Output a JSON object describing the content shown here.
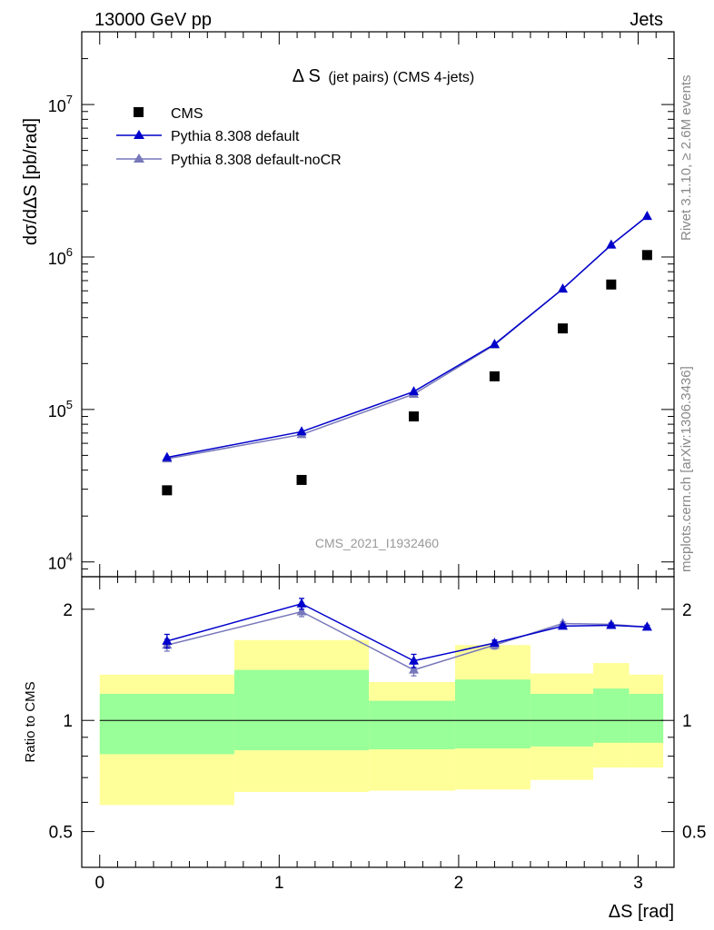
{
  "header": {
    "left": "13000 GeV pp",
    "right": "Jets"
  },
  "side": {
    "rivet": "Rivet 3.1.10, ≥ 2.6M events",
    "mcplots": "mcplots.cern.ch [arXiv:1306.3436]"
  },
  "watermark": "CMS_2021_I1932460",
  "colors": {
    "data": "#000000",
    "default": "#0000cc",
    "noCR": "#7777bb",
    "band_inner": "#99ff99",
    "band_outer": "#ffff99"
  },
  "chart_data": [
    {
      "type": "scatter",
      "title": "Δ S (jet pairs) (CMS 4-jets)",
      "title_main": "Δ S",
      "title_sub": "(jet pairs) (CMS 4-jets)",
      "ylabel": "dσ/dΔS [pb/rad]",
      "yscale": "log",
      "ylim": [
        8000,
        30000000
      ],
      "xlim": [
        -0.1,
        3.2
      ],
      "yticks": [
        {
          "value": 10000,
          "mantissa": "10",
          "exp": "4"
        },
        {
          "value": 100000,
          "mantissa": "10",
          "exp": "5"
        },
        {
          "value": 1000000,
          "mantissa": "10",
          "exp": "6"
        },
        {
          "value": 10000000,
          "mantissa": "10",
          "exp": "7"
        }
      ],
      "legend": {
        "placement": "top-left",
        "entries": [
          "CMS",
          "Pythia 8.308 default",
          "Pythia 8.308 default-noCR"
        ]
      },
      "series": [
        {
          "name": "CMS",
          "style": "square",
          "x": [
            0.375,
            1.125,
            1.75,
            2.2,
            2.58,
            2.85,
            3.05
          ],
          "y": [
            29500,
            34500,
            90000,
            165000,
            340000,
            660000,
            1030000
          ]
        },
        {
          "name": "Pythia 8.308 default",
          "style": "triangle-line",
          "x": [
            0.375,
            1.125,
            1.75,
            2.2,
            2.58,
            2.85,
            3.05
          ],
          "y": [
            48500,
            71500,
            131000,
            268000,
            618000,
            1200000,
            1850000
          ]
        },
        {
          "name": "Pythia 8.308 default-noCR",
          "style": "triangle-line",
          "x": [
            0.375,
            1.125,
            1.75,
            2.2,
            2.58,
            2.85,
            3.05
          ],
          "y": [
            47500,
            68500,
            126000,
            265000,
            618000,
            1200000,
            1850000
          ]
        }
      ]
    },
    {
      "type": "line",
      "ylabel": "Ratio to CMS",
      "xlabel": "ΔS [rad]",
      "yscale": "log",
      "ylim": [
        0.4,
        2.45
      ],
      "xlim": [
        -0.1,
        3.2
      ],
      "xticks": [
        0,
        1,
        2,
        3
      ],
      "yticks": [
        0.5,
        1,
        2
      ],
      "reference_line": 1,
      "bands": {
        "edges": [
          0,
          0.75,
          1.5,
          1.98,
          2.4,
          2.75,
          2.95,
          3.14
        ],
        "inner_lo": [
          0.81,
          0.83,
          0.835,
          0.84,
          0.85,
          0.87,
          0.87
        ],
        "inner_hi": [
          1.18,
          1.37,
          1.13,
          1.29,
          1.18,
          1.22,
          1.18
        ],
        "outer_lo": [
          0.59,
          0.64,
          0.645,
          0.65,
          0.69,
          0.745,
          0.745
        ],
        "outer_hi": [
          1.33,
          1.65,
          1.27,
          1.6,
          1.34,
          1.43,
          1.33
        ]
      },
      "series": [
        {
          "name": "Pythia 8.308 default",
          "x": [
            0.375,
            1.125,
            1.75,
            2.2,
            2.58,
            2.85,
            3.05
          ],
          "y": [
            1.64,
            2.07,
            1.45,
            1.62,
            1.8,
            1.81,
            1.79
          ],
          "err": [
            0.07,
            0.07,
            0.06,
            0.03,
            0.02,
            0.02,
            0.02
          ]
        },
        {
          "name": "Pythia 8.308 default-noCR",
          "x": [
            0.375,
            1.125,
            1.75,
            2.2,
            2.58,
            2.85,
            3.05
          ],
          "y": [
            1.6,
            1.97,
            1.37,
            1.6,
            1.83,
            1.82,
            1.79
          ],
          "err": [
            0.06,
            0.06,
            0.05,
            0.04,
            0.02,
            0.02,
            0.02
          ]
        }
      ]
    }
  ]
}
